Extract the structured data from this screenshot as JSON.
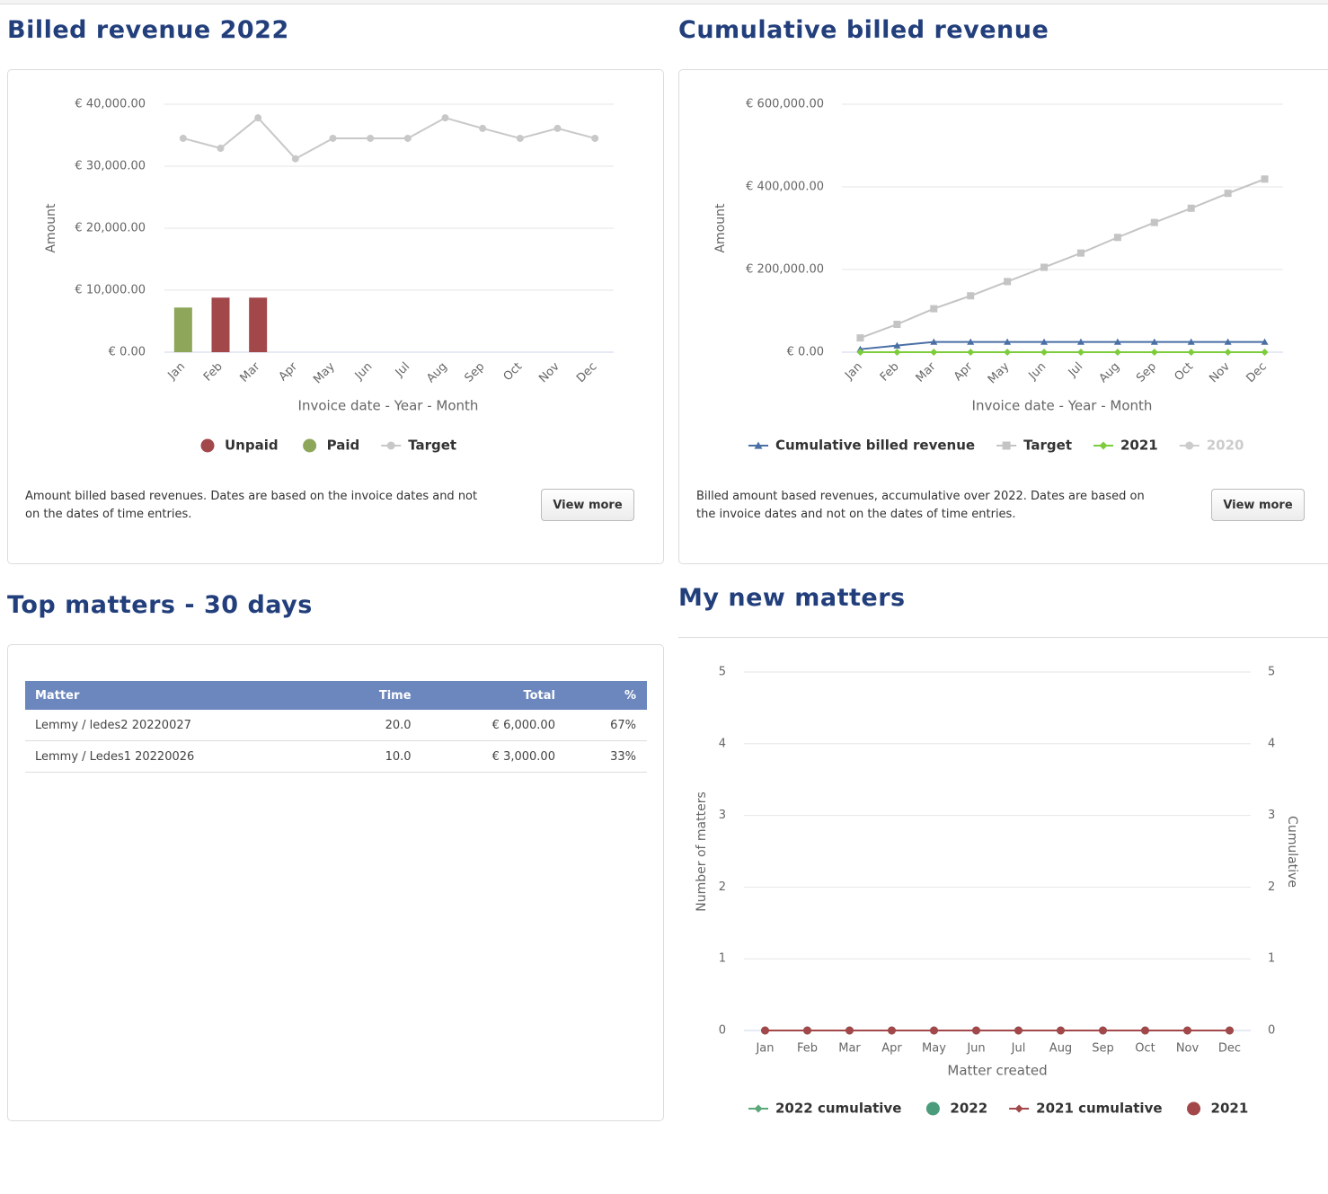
{
  "chart_data": [
    {
      "type": "bar",
      "title": "Billed revenue 2022",
      "ylabel": "Amount",
      "xlabel": "Invoice date - Year - Month",
      "note": "Amount billed based revenues. Dates are based on the invoice dates and not on the dates of time entries.",
      "button": "View more",
      "stacked": true,
      "grid": true,
      "categories": [
        "Jan",
        "Feb",
        "Mar",
        "Apr",
        "May",
        "Jun",
        "Jul",
        "Aug",
        "Sep",
        "Oct",
        "Nov",
        "Dec"
      ],
      "ylim": [
        0,
        40000
      ],
      "yticks": [
        {
          "value": 0,
          "label": "€ 0.00"
        },
        {
          "value": 10000,
          "label": "€ 10,000.00"
        },
        {
          "value": 20000,
          "label": "€ 20,000.00"
        },
        {
          "value": 30000,
          "label": "€ 30,000.00"
        },
        {
          "value": 40000,
          "label": "€ 40,000.00"
        }
      ],
      "series": [
        {
          "name": "Unpaid",
          "color": "#a2474a",
          "kind": "bar",
          "values": [
            0,
            8800,
            8800,
            0,
            0,
            0,
            0,
            0,
            0,
            0,
            0,
            0
          ]
        },
        {
          "name": "Paid",
          "color": "#8ea65a",
          "kind": "bar",
          "values": [
            7200,
            0,
            0,
            0,
            0,
            0,
            0,
            0,
            0,
            0,
            0,
            0
          ]
        },
        {
          "name": "Target",
          "color": "#c8c8c8",
          "kind": "line",
          "marker": "circle",
          "values": [
            34500,
            32900,
            37800,
            31200,
            34500,
            34500,
            34500,
            37800,
            36100,
            34500,
            36100,
            34500
          ]
        }
      ]
    },
    {
      "type": "line",
      "title": "Cumulative billed revenue",
      "ylabel": "Amount",
      "xlabel": "Invoice date - Year - Month",
      "note": "Billed amount based revenues, accumulative over 2022. Dates are based on the invoice dates and not on the dates of time entries.",
      "button": "View more",
      "grid": true,
      "categories": [
        "Jan",
        "Feb",
        "Mar",
        "Apr",
        "May",
        "Jun",
        "Jul",
        "Aug",
        "Sep",
        "Oct",
        "Nov",
        "Dec"
      ],
      "ylim": [
        0,
        600000
      ],
      "yticks": [
        {
          "value": 0,
          "label": "€ 0.00"
        },
        {
          "value": 200000,
          "label": "€ 200,000.00"
        },
        {
          "value": 400000,
          "label": "€ 400,000.00"
        },
        {
          "value": 600000,
          "label": "€ 600,000.00"
        }
      ],
      "series": [
        {
          "name": "Cumulative billed revenue",
          "color": "#4a6fa5",
          "kind": "line",
          "marker": "triangle",
          "values": [
            7200,
            16000,
            24800,
            24800,
            24800,
            24800,
            24800,
            24800,
            24800,
            24800,
            24800,
            24800
          ]
        },
        {
          "name": "Target",
          "color": "#c4c4c4",
          "kind": "line",
          "marker": "square",
          "values": [
            34500,
            67400,
            105200,
            136400,
            170900,
            205400,
            239900,
            277700,
            313800,
            348300,
            384400,
            418900
          ]
        },
        {
          "name": "2021",
          "color": "#7ccc3c",
          "kind": "line",
          "marker": "diamond",
          "values": [
            0,
            0,
            0,
            0,
            0,
            0,
            0,
            0,
            0,
            0,
            0,
            0
          ]
        },
        {
          "name": "2020",
          "color": "#cccccc",
          "kind": "line",
          "marker": "circle",
          "hidden": true,
          "values": [
            null,
            null,
            null,
            null,
            null,
            null,
            null,
            null,
            null,
            null,
            null,
            null
          ]
        }
      ]
    },
    {
      "type": "line",
      "title": "My new matters",
      "ylabel": "Number of matters",
      "y2label": "Cumulative",
      "xlabel": "Matter created",
      "grid": true,
      "categories": [
        "Jan",
        "Feb",
        "Mar",
        "Apr",
        "May",
        "Jun",
        "Jul",
        "Aug",
        "Sep",
        "Oct",
        "Nov",
        "Dec"
      ],
      "ylim": [
        0,
        5
      ],
      "yticks": [
        0,
        1,
        2,
        3,
        4,
        5
      ],
      "y2lim": [
        0,
        5
      ],
      "y2ticks": [
        0,
        1,
        2,
        3,
        4,
        5
      ],
      "series": [
        {
          "name": "2022 cumulative",
          "color": "#5aa878",
          "kind": "line",
          "marker": "diamond",
          "axis": "y2",
          "values": [
            0,
            0,
            0,
            0,
            0,
            0,
            0,
            0,
            0,
            0,
            0,
            0
          ]
        },
        {
          "name": "2022",
          "color": "#4a9c7a",
          "kind": "scatter",
          "marker": "circle",
          "values": [
            0,
            0,
            0,
            0,
            0,
            0,
            0,
            0,
            0,
            0,
            0,
            0
          ]
        },
        {
          "name": "2021 cumulative",
          "color": "#a2474a",
          "kind": "line",
          "marker": "diamond",
          "axis": "y2",
          "values": [
            0,
            0,
            0,
            0,
            0,
            0,
            0,
            0,
            0,
            0,
            0,
            0
          ]
        },
        {
          "name": "2021",
          "color": "#a2474a",
          "kind": "scatter",
          "marker": "circle",
          "values": [
            0,
            0,
            0,
            0,
            0,
            0,
            0,
            0,
            0,
            0,
            0,
            0
          ]
        }
      ]
    }
  ],
  "table": {
    "title": "Top matters - 30 days",
    "headers": [
      "Matter",
      "Time",
      "Total",
      "%"
    ],
    "rows": [
      [
        "Lemmy / ledes2 20220027",
        "20.0",
        "€ 6,000.00",
        "67%"
      ],
      [
        "Lemmy / Ledes1 20220026",
        "10.0",
        "€ 3,000.00",
        "33%"
      ]
    ]
  }
}
